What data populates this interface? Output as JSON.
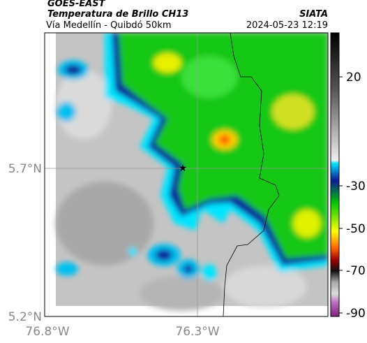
{
  "header": {
    "source": "GOES-EAST",
    "title": "Temperatura de Brillo CH13",
    "subtitle": "Vía Medellín - Quibdó 50km",
    "agency": "SIATA",
    "timestamp": "2024-05-23 12:19"
  },
  "map": {
    "lat_labels": [
      "5.7°N",
      "5.2°N"
    ],
    "lon_labels": [
      "76.8°W",
      "76.3°W"
    ]
  },
  "colorbar": {
    "ticks": [
      "20",
      "-30",
      "-50",
      "-70",
      "-90"
    ]
  }
}
